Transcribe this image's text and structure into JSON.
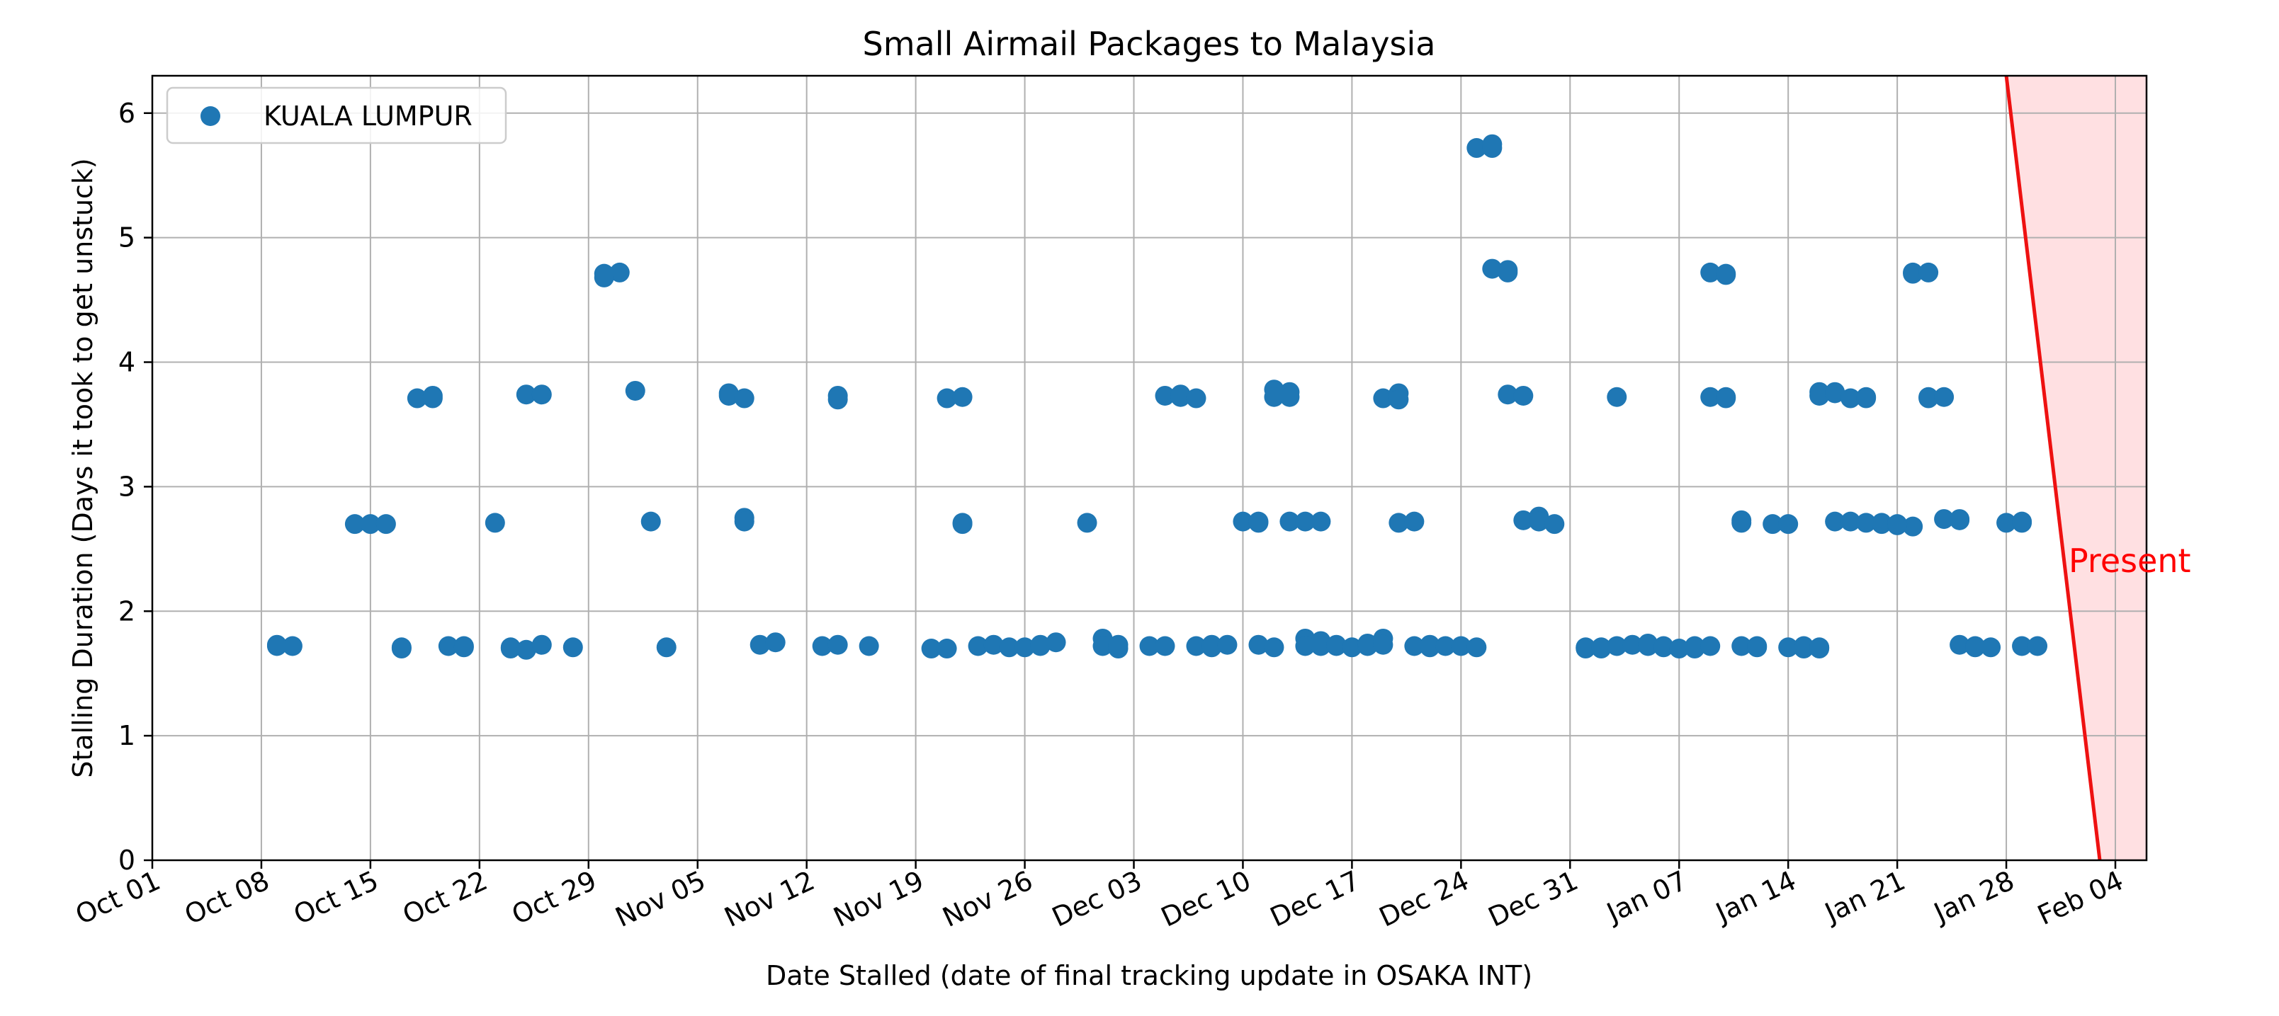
{
  "chart_data": {
    "type": "scatter",
    "title": "Small Airmail Packages to Malaysia",
    "xlabel": "Date Stalled (date of final tracking update in OSAKA INT)",
    "ylabel": "Stalling Duration (Days it took to get unstuck)",
    "xlim": [
      "2023-10-01",
      "2024-02-06"
    ],
    "ylim": [
      0,
      6.3
    ],
    "x_ticks": [
      {
        "date": "2023-10-01",
        "label": "Oct 01"
      },
      {
        "date": "2023-10-08",
        "label": "Oct 08"
      },
      {
        "date": "2023-10-15",
        "label": "Oct 15"
      },
      {
        "date": "2023-10-22",
        "label": "Oct 22"
      },
      {
        "date": "2023-10-29",
        "label": "Oct 29"
      },
      {
        "date": "2023-11-05",
        "label": "Nov 05"
      },
      {
        "date": "2023-11-12",
        "label": "Nov 12"
      },
      {
        "date": "2023-11-19",
        "label": "Nov 19"
      },
      {
        "date": "2023-11-26",
        "label": "Nov 26"
      },
      {
        "date": "2023-12-03",
        "label": "Dec 03"
      },
      {
        "date": "2023-12-10",
        "label": "Dec 10"
      },
      {
        "date": "2023-12-17",
        "label": "Dec 17"
      },
      {
        "date": "2023-12-24",
        "label": "Dec 24"
      },
      {
        "date": "2023-12-31",
        "label": "Dec 31"
      },
      {
        "date": "2024-01-07",
        "label": "Jan 07"
      },
      {
        "date": "2024-01-14",
        "label": "Jan 14"
      },
      {
        "date": "2024-01-21",
        "label": "Jan 21"
      },
      {
        "date": "2024-01-28",
        "label": "Jan 28"
      },
      {
        "date": "2024-02-04",
        "label": "Feb 04"
      }
    ],
    "y_ticks": [
      0,
      1,
      2,
      3,
      4,
      5,
      6
    ],
    "grid": true,
    "legend_position": "top-left",
    "series": [
      {
        "name": "KUALA LUMPUR",
        "color": "#1f77b4",
        "points": [
          {
            "x": "2023-10-09",
            "y": 1.72
          },
          {
            "x": "2023-10-09",
            "y": 1.73
          },
          {
            "x": "2023-10-10",
            "y": 1.72
          },
          {
            "x": "2023-10-14",
            "y": 2.7
          },
          {
            "x": "2023-10-15",
            "y": 2.7
          },
          {
            "x": "2023-10-16",
            "y": 2.7
          },
          {
            "x": "2023-10-17",
            "y": 1.71
          },
          {
            "x": "2023-10-17",
            "y": 1.7
          },
          {
            "x": "2023-10-18",
            "y": 3.71
          },
          {
            "x": "2023-10-19",
            "y": 3.73
          },
          {
            "x": "2023-10-19",
            "y": 3.71
          },
          {
            "x": "2023-10-20",
            "y": 1.72
          },
          {
            "x": "2023-10-21",
            "y": 1.72
          },
          {
            "x": "2023-10-21",
            "y": 1.71
          },
          {
            "x": "2023-10-23",
            "y": 2.71
          },
          {
            "x": "2023-10-24",
            "y": 1.71
          },
          {
            "x": "2023-10-24",
            "y": 1.7
          },
          {
            "x": "2023-10-25",
            "y": 1.69
          },
          {
            "x": "2023-10-25",
            "y": 3.74
          },
          {
            "x": "2023-10-26",
            "y": 3.74
          },
          {
            "x": "2023-10-26",
            "y": 1.73
          },
          {
            "x": "2023-10-28",
            "y": 1.71
          },
          {
            "x": "2023-10-30",
            "y": 4.71
          },
          {
            "x": "2023-10-31",
            "y": 4.72
          },
          {
            "x": "2023-10-30",
            "y": 4.68
          },
          {
            "x": "2023-11-01",
            "y": 3.77
          },
          {
            "x": "2023-11-02",
            "y": 2.72
          },
          {
            "x": "2023-11-03",
            "y": 1.71
          },
          {
            "x": "2023-11-07",
            "y": 3.75
          },
          {
            "x": "2023-11-07",
            "y": 3.73
          },
          {
            "x": "2023-11-08",
            "y": 3.71
          },
          {
            "x": "2023-11-08",
            "y": 2.75
          },
          {
            "x": "2023-11-08",
            "y": 2.72
          },
          {
            "x": "2023-11-09",
            "y": 1.73
          },
          {
            "x": "2023-11-10",
            "y": 1.75
          },
          {
            "x": "2023-11-13",
            "y": 1.72
          },
          {
            "x": "2023-11-14",
            "y": 1.73
          },
          {
            "x": "2023-11-14",
            "y": 3.73
          },
          {
            "x": "2023-11-14",
            "y": 3.7
          },
          {
            "x": "2023-11-16",
            "y": 1.72
          },
          {
            "x": "2023-11-20",
            "y": 1.7
          },
          {
            "x": "2023-11-21",
            "y": 1.7
          },
          {
            "x": "2023-11-21",
            "y": 3.71
          },
          {
            "x": "2023-11-22",
            "y": 3.72
          },
          {
            "x": "2023-11-22",
            "y": 2.71
          },
          {
            "x": "2023-11-22",
            "y": 2.7
          },
          {
            "x": "2023-11-23",
            "y": 1.72
          },
          {
            "x": "2023-11-24",
            "y": 1.73
          },
          {
            "x": "2023-11-25",
            "y": 1.71
          },
          {
            "x": "2023-11-26",
            "y": 1.71
          },
          {
            "x": "2023-11-27",
            "y": 1.72
          },
          {
            "x": "2023-11-27",
            "y": 1.73
          },
          {
            "x": "2023-11-28",
            "y": 1.75
          },
          {
            "x": "2023-11-30",
            "y": 2.71
          },
          {
            "x": "2023-12-01",
            "y": 1.78
          },
          {
            "x": "2023-12-01",
            "y": 1.72
          },
          {
            "x": "2023-12-02",
            "y": 1.7
          },
          {
            "x": "2023-12-02",
            "y": 1.73
          },
          {
            "x": "2023-12-04",
            "y": 1.72
          },
          {
            "x": "2023-12-05",
            "y": 1.72
          },
          {
            "x": "2023-12-05",
            "y": 3.73
          },
          {
            "x": "2023-12-06",
            "y": 3.74
          },
          {
            "x": "2023-12-06",
            "y": 3.72
          },
          {
            "x": "2023-12-07",
            "y": 3.71
          },
          {
            "x": "2023-12-07",
            "y": 1.72
          },
          {
            "x": "2023-12-08",
            "y": 1.71
          },
          {
            "x": "2023-12-08",
            "y": 1.73
          },
          {
            "x": "2023-12-09",
            "y": 1.73
          },
          {
            "x": "2023-12-10",
            "y": 2.72
          },
          {
            "x": "2023-12-11",
            "y": 2.71
          },
          {
            "x": "2023-12-11",
            "y": 2.72
          },
          {
            "x": "2023-12-11",
            "y": 1.73
          },
          {
            "x": "2023-12-12",
            "y": 1.71
          },
          {
            "x": "2023-12-12",
            "y": 3.78
          },
          {
            "x": "2023-12-13",
            "y": 3.76
          },
          {
            "x": "2023-12-13",
            "y": 3.72
          },
          {
            "x": "2023-12-12",
            "y": 3.72
          },
          {
            "x": "2023-12-13",
            "y": 2.72
          },
          {
            "x": "2023-12-14",
            "y": 2.72
          },
          {
            "x": "2023-12-15",
            "y": 2.72
          },
          {
            "x": "2023-12-14",
            "y": 1.78
          },
          {
            "x": "2023-12-14",
            "y": 1.72
          },
          {
            "x": "2023-12-15",
            "y": 1.76
          },
          {
            "x": "2023-12-15",
            "y": 1.72
          },
          {
            "x": "2023-12-16",
            "y": 1.73
          },
          {
            "x": "2023-12-16",
            "y": 1.72
          },
          {
            "x": "2023-12-17",
            "y": 1.71
          },
          {
            "x": "2023-12-18",
            "y": 1.72
          },
          {
            "x": "2023-12-18",
            "y": 1.74
          },
          {
            "x": "2023-12-19",
            "y": 1.78
          },
          {
            "x": "2023-12-19",
            "y": 1.73
          },
          {
            "x": "2023-12-19",
            "y": 3.71
          },
          {
            "x": "2023-12-20",
            "y": 3.75
          },
          {
            "x": "2023-12-20",
            "y": 3.7
          },
          {
            "x": "2023-12-20",
            "y": 2.71
          },
          {
            "x": "2023-12-21",
            "y": 2.72
          },
          {
            "x": "2023-12-21",
            "y": 1.72
          },
          {
            "x": "2023-12-22",
            "y": 1.71
          },
          {
            "x": "2023-12-22",
            "y": 1.73
          },
          {
            "x": "2023-12-23",
            "y": 1.72
          },
          {
            "x": "2023-12-24",
            "y": 1.72
          },
          {
            "x": "2023-12-25",
            "y": 1.71
          },
          {
            "x": "2023-12-25",
            "y": 5.72
          },
          {
            "x": "2023-12-26",
            "y": 5.72
          },
          {
            "x": "2023-12-26",
            "y": 5.75
          },
          {
            "x": "2023-12-26",
            "y": 4.75
          },
          {
            "x": "2023-12-27",
            "y": 4.74
          },
          {
            "x": "2023-12-27",
            "y": 4.72
          },
          {
            "x": "2023-12-27",
            "y": 3.74
          },
          {
            "x": "2023-12-28",
            "y": 3.73
          },
          {
            "x": "2023-12-28",
            "y": 2.73
          },
          {
            "x": "2023-12-29",
            "y": 2.76
          },
          {
            "x": "2023-12-29",
            "y": 2.72
          },
          {
            "x": "2023-12-30",
            "y": 2.7
          },
          {
            "x": "2024-01-01",
            "y": 1.71
          },
          {
            "x": "2024-01-01",
            "y": 1.7
          },
          {
            "x": "2024-01-02",
            "y": 1.71
          },
          {
            "x": "2024-01-02",
            "y": 1.7
          },
          {
            "x": "2024-01-03",
            "y": 3.72
          },
          {
            "x": "2024-01-03",
            "y": 1.72
          },
          {
            "x": "2024-01-04",
            "y": 1.73
          },
          {
            "x": "2024-01-05",
            "y": 1.72
          },
          {
            "x": "2024-01-05",
            "y": 1.74
          },
          {
            "x": "2024-01-06",
            "y": 1.72
          },
          {
            "x": "2024-01-06",
            "y": 1.71
          },
          {
            "x": "2024-01-07",
            "y": 1.7
          },
          {
            "x": "2024-01-08",
            "y": 1.7
          },
          {
            "x": "2024-01-08",
            "y": 1.72
          },
          {
            "x": "2024-01-09",
            "y": 1.72
          },
          {
            "x": "2024-01-09",
            "y": 4.72
          },
          {
            "x": "2024-01-10",
            "y": 4.7
          },
          {
            "x": "2024-01-10",
            "y": 4.71
          },
          {
            "x": "2024-01-09",
            "y": 3.72
          },
          {
            "x": "2024-01-10",
            "y": 3.72
          },
          {
            "x": "2024-01-10",
            "y": 3.71
          },
          {
            "x": "2024-01-11",
            "y": 2.73
          },
          {
            "x": "2024-01-11",
            "y": 2.71
          },
          {
            "x": "2024-01-11",
            "y": 1.72
          },
          {
            "x": "2024-01-12",
            "y": 1.72
          },
          {
            "x": "2024-01-12",
            "y": 1.71
          },
          {
            "x": "2024-01-13",
            "y": 2.7
          },
          {
            "x": "2024-01-14",
            "y": 2.7
          },
          {
            "x": "2024-01-14",
            "y": 1.71
          },
          {
            "x": "2024-01-15",
            "y": 1.72
          },
          {
            "x": "2024-01-15",
            "y": 1.7
          },
          {
            "x": "2024-01-16",
            "y": 1.71
          },
          {
            "x": "2024-01-16",
            "y": 1.7
          },
          {
            "x": "2024-01-16",
            "y": 3.76
          },
          {
            "x": "2024-01-16",
            "y": 3.73
          },
          {
            "x": "2024-01-17",
            "y": 3.75
          },
          {
            "x": "2024-01-17",
            "y": 3.76
          },
          {
            "x": "2024-01-17",
            "y": 2.72
          },
          {
            "x": "2024-01-18",
            "y": 2.72
          },
          {
            "x": "2024-01-18",
            "y": 3.71
          },
          {
            "x": "2024-01-19",
            "y": 3.71
          },
          {
            "x": "2024-01-19",
            "y": 3.72
          },
          {
            "x": "2024-01-19",
            "y": 2.71
          },
          {
            "x": "2024-01-20",
            "y": 2.7
          },
          {
            "x": "2024-01-20",
            "y": 2.71
          },
          {
            "x": "2024-01-21",
            "y": 2.69
          },
          {
            "x": "2024-01-22",
            "y": 2.68
          },
          {
            "x": "2024-01-21",
            "y": 2.7
          },
          {
            "x": "2024-01-22",
            "y": 4.72
          },
          {
            "x": "2024-01-22",
            "y": 4.71
          },
          {
            "x": "2024-01-23",
            "y": 4.72
          },
          {
            "x": "2024-01-23",
            "y": 3.72
          },
          {
            "x": "2024-01-23",
            "y": 3.71
          },
          {
            "x": "2024-01-24",
            "y": 3.72
          },
          {
            "x": "2024-01-24",
            "y": 2.74
          },
          {
            "x": "2024-01-25",
            "y": 2.74
          },
          {
            "x": "2024-01-25",
            "y": 2.73
          },
          {
            "x": "2024-01-25",
            "y": 1.73
          },
          {
            "x": "2024-01-26",
            "y": 1.72
          },
          {
            "x": "2024-01-26",
            "y": 1.71
          },
          {
            "x": "2024-01-27",
            "y": 1.71
          },
          {
            "x": "2024-01-28",
            "y": 2.71
          },
          {
            "x": "2024-01-29",
            "y": 2.71
          },
          {
            "x": "2024-01-29",
            "y": 2.72
          },
          {
            "x": "2024-01-29",
            "y": 1.72
          },
          {
            "x": "2024-01-30",
            "y": 1.72
          }
        ]
      }
    ],
    "annotations": [
      {
        "text": "Present",
        "color": "#ff0000"
      }
    ],
    "present_line": {
      "color": "#ee1111",
      "shade_color": "#ffe0e2",
      "from": {
        "date": "2024-01-28",
        "y": 6.3
      },
      "to": {
        "date": "2024-02-03",
        "y": 0
      }
    }
  }
}
